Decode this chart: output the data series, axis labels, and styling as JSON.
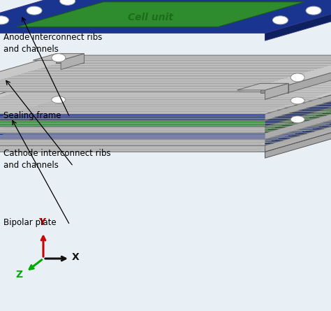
{
  "background_color": "#e8eff5",
  "labels": {
    "anode": "Anode interconnect ribs\nand channels",
    "sealing": "Sealing frame",
    "cathode": "Cathode interconnect ribs\nand channels",
    "bipolar": "Bipolar plate",
    "cell_unit": "Cell unit"
  },
  "colors": {
    "plate_light": "#d0d0d0",
    "plate_mid": "#b8b8b8",
    "plate_dark": "#909090",
    "plate_side": "#a0a0a0",
    "plate_front": "#888888",
    "blue_frame": "#1a3590",
    "blue_side": "#0a1f60",
    "green_cell": "#2e8b2e",
    "green_side": "#1a5a1a",
    "hole_color": "#ffffff",
    "axis_y": "#cc0000",
    "axis_x": "#111111",
    "axis_z": "#00aa00",
    "text_color": "#111111",
    "cell_unit_text": "#1a6e1a"
  },
  "figsize": [
    4.74,
    4.45
  ],
  "dpi": 100
}
